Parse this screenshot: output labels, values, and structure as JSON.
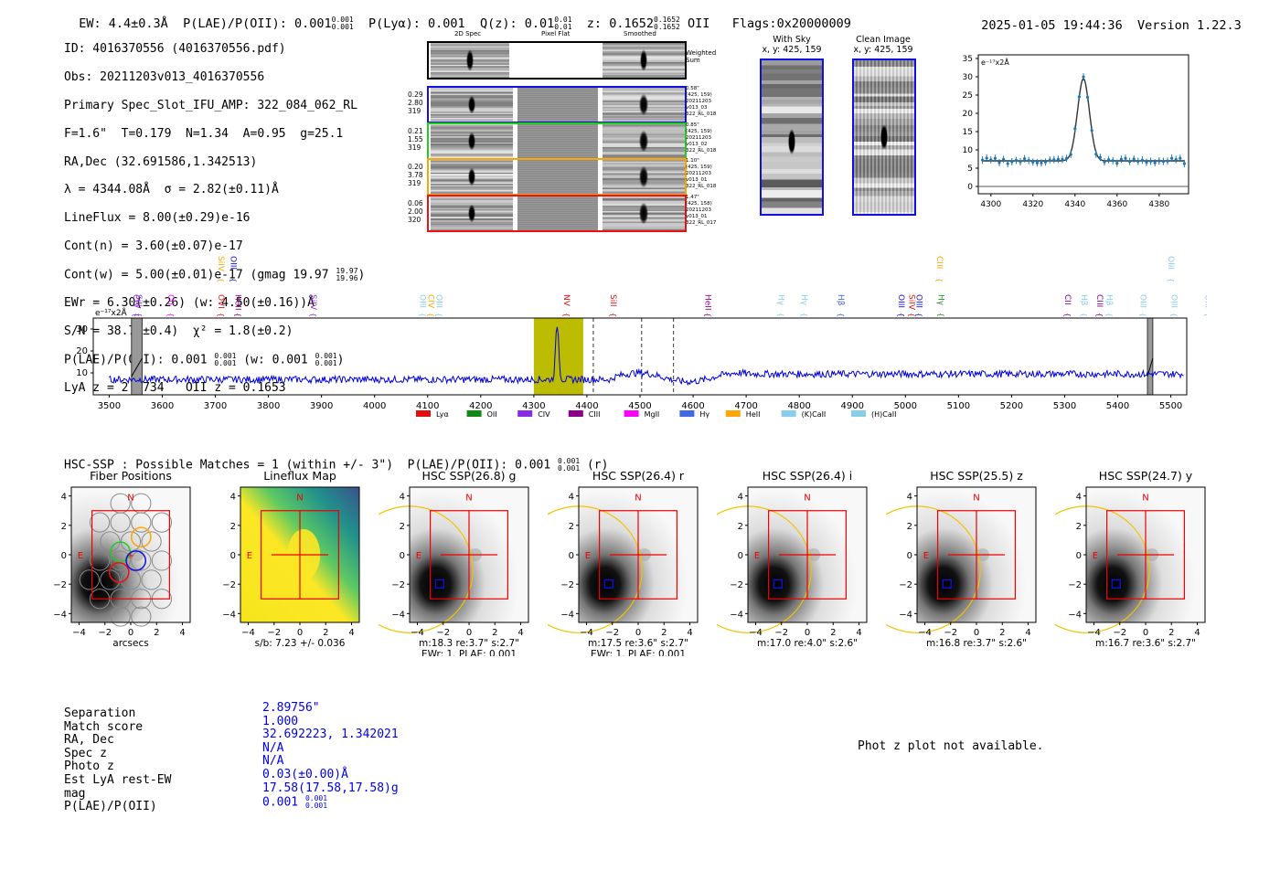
{
  "header": {
    "ew": "EW: 4.4±0.3Å",
    "plae_label": "P(LAE)/P(OII):",
    "plae_value": "0.001",
    "plae_hi": "0.001",
    "plae_lo": "0.001",
    "plya": "P(Lyα): 0.001",
    "qz_label": "Q(z):",
    "qz_value": "0.01",
    "qz_hi": "0.01",
    "qz_lo": "0.01",
    "z_label": "z:",
    "z_value": "0.1652",
    "z_hi": "0.1652",
    "z_lo": "0.1652",
    "z_line": "OII",
    "flags": "Flags:0x20000009",
    "datetime": "2025-01-05 19:44:36",
    "version": "Version 1.22.3"
  },
  "info": {
    "id": "ID: 4016370556 (4016370556.pdf)",
    "obs": "Obs: 20211203v013_4016370556",
    "primary": "Primary Spec_Slot_IFU_AMP: 322_084_062_RL",
    "fparams": "F=1.6\"  T=0.179  N=1.34  A=0.95  g=25.1",
    "radec": "RA,Dec (32.691586,1.342513)",
    "lambda": "λ = 4344.08Å  σ = 2.82(±0.11)Å",
    "lineflux": "LineFlux = 8.00(±0.29)e-16",
    "contn": "Cont(n) = 3.60(±0.07)e-17",
    "contw": "Cont(w) = 5.00(±0.01)e-17 (gmag 19.97",
    "contw_hi": "19.97",
    "contw_lo": "19.96",
    "ewr": "EWr = 6.30(±0.26) (w: 4.50(±0.16))Å",
    "sn": "S/N = 38.7(±0.4)  χ² = 1.8(±0.2)",
    "plae": "P(LAE)/P(OII): 0.001",
    "plae_hi": "0.001",
    "plae_lo": "0.001",
    "plae_w": "(w: 0.001",
    "plae_w_hi": "0.001",
    "plae_w_lo": "0.001",
    "lyaz": "LyA z = 2.5734   OII z = 0.1653"
  },
  "cutouts": {
    "col_titles": [
      "2D Spec",
      "Pixel Flat",
      "Smoothed"
    ],
    "weighted_sum": "Weighted\nSum",
    "rows": [
      {
        "left": [
          "0.29",
          "2.80",
          "319"
        ],
        "right": [
          "0.58\"",
          "(425, 159)",
          "20211203",
          "v013_03",
          "322_RL_018"
        ],
        "color": "#1010e0"
      },
      {
        "left": [
          "0.21",
          "1.55",
          "319"
        ],
        "right": [
          "0.85\"",
          "(425, 159)",
          "20211203",
          "v013_02",
          "322_RL_018"
        ],
        "color": "#22cc22"
      },
      {
        "left": [
          "0.20",
          "3.78",
          "319"
        ],
        "right": [
          "1.10\"",
          "(425, 159)",
          "20211203",
          "v013_01",
          "322_RL_018"
        ],
        "color": "#ffa500"
      },
      {
        "left": [
          "0.06",
          "2.00",
          "320"
        ],
        "right": [
          "1.47\"",
          "(425, 158)",
          "20211203",
          "v013_01",
          "322_RL_017"
        ],
        "color": "#ee1111"
      }
    ],
    "with_sky_title": "With Sky",
    "with_sky_xy": "x, y: 425, 159",
    "clean_title": "Clean Image",
    "clean_xy": "x, y: 425, 159"
  },
  "zoom_chart": {
    "unit": "e⁻¹⁷x2Å",
    "xticks": [
      "4300",
      "4320",
      "4340",
      "4360",
      "4380"
    ],
    "yticks": [
      "0",
      "5",
      "10",
      "15",
      "20",
      "25",
      "30",
      "35"
    ]
  },
  "spectrum": {
    "unit": "e⁻¹⁷x2Å",
    "xticks": [
      "3500",
      "3600",
      "3700",
      "3800",
      "3900",
      "4000",
      "4100",
      "4200",
      "4300",
      "4400",
      "4500",
      "4600",
      "4700",
      "4800",
      "4900",
      "5000",
      "5100",
      "5200",
      "5300",
      "5400",
      "5500"
    ],
    "yticks": [
      "10",
      "20",
      "30"
    ],
    "lines": [
      {
        "name": "CIV",
        "x": 3541,
        "color": "#8a2be2",
        "high": false
      },
      {
        "name": "SiII",
        "x": 3546,
        "color": "#8a2be2",
        "high": false
      },
      {
        "name": "CII",
        "x": 3606,
        "color": "#ff00ff",
        "high": false
      },
      {
        "name": "SiIV",
        "x": 3701,
        "color": "#ffa500",
        "high": true
      },
      {
        "name": "OIII",
        "x": 3724,
        "color": "#1010e0",
        "high": true
      },
      {
        "name": "OVI",
        "x": 3701,
        "color": "#e01010",
        "high": false
      },
      {
        "name": "HeII",
        "x": 3733,
        "color": "#8b008b",
        "high": false
      },
      {
        "name": "SiIV",
        "x": 3875,
        "color": "#8a2be2",
        "high": false
      },
      {
        "name": "OIII",
        "x": 4081,
        "color": "#87ceeb",
        "high": false
      },
      {
        "name": "CIV",
        "x": 4096,
        "color": "#ffa500",
        "high": false
      },
      {
        "name": "OIII",
        "x": 4112,
        "color": "#87ceeb",
        "high": false
      },
      {
        "name": "NV",
        "x": 4352,
        "color": "#e01010",
        "high": false
      },
      {
        "name": "SiII",
        "x": 4440,
        "color": "#e01010",
        "high": false
      },
      {
        "name": "HeII",
        "x": 4618,
        "color": "#8b008b",
        "high": false
      },
      {
        "name": "Hγ",
        "x": 4756,
        "color": "#87ceeb",
        "high": false
      },
      {
        "name": "Hγ",
        "x": 4800,
        "color": "#87ceeb",
        "high": false
      },
      {
        "name": "Hβ",
        "x": 4869,
        "color": "#4169e1",
        "high": false
      },
      {
        "name": "OIII",
        "x": 4982,
        "color": "#1010e0",
        "high": false
      },
      {
        "name": "SiIV",
        "x": 5002,
        "color": "#e01010",
        "high": false
      },
      {
        "name": "OIII",
        "x": 5016,
        "color": "#1010e0",
        "high": false
      },
      {
        "name": "CIII",
        "x": 5055,
        "color": "#ffa500",
        "high": true
      },
      {
        "name": "Hγ",
        "x": 5057,
        "color": "#228b22",
        "high": false
      },
      {
        "name": "CII",
        "x": 5296,
        "color": "#8b008b",
        "high": false
      },
      {
        "name": "Hβ",
        "x": 5327,
        "color": "#87ceeb",
        "high": false
      },
      {
        "name": "CIII",
        "x": 5356,
        "color": "#8b008b",
        "high": false
      },
      {
        "name": "Hβ",
        "x": 5374,
        "color": "#87ceeb",
        "high": false
      },
      {
        "name": "OIII",
        "x": 5438,
        "color": "#87ceeb",
        "high": false
      },
      {
        "name": "OIII",
        "x": 5490,
        "color": "#87ceeb",
        "high": true
      },
      {
        "name": "OIII",
        "x": 5496,
        "color": "#87ceeb",
        "high": false
      },
      {
        "name": "OIII",
        "x": 5560,
        "color": "#87ceeb",
        "high": false
      }
    ],
    "legend": [
      {
        "name": "Lyα",
        "color": "#e01010"
      },
      {
        "name": "OII",
        "color": "#118811"
      },
      {
        "name": "CIV",
        "color": "#8a2be2"
      },
      {
        "name": "CIII",
        "color": "#8b008b"
      },
      {
        "name": "MgII",
        "color": "#ff00ff"
      },
      {
        "name": "Hγ",
        "color": "#4169e1"
      },
      {
        "name": "HeII",
        "color": "#ffa500"
      },
      {
        "name": "(K)CaII",
        "color": "#87ceeb"
      },
      {
        "name": "(H)CaII",
        "color": "#87ceeb"
      }
    ]
  },
  "hsc": {
    "header": "HSC-SSP : Possible Matches = 1 (within +/- 3\")  P(LAE)/P(OII): 0.001",
    "header_hi": "0.001",
    "header_lo": "0.001",
    "header_band": "(r)",
    "panels": [
      {
        "title": "Fiber Positions",
        "cap1": "arcsecs",
        "cap2": ""
      },
      {
        "title": "Lineflux Map",
        "cap1": "s/b: 7.23 +/- 0.036",
        "cap2": ""
      },
      {
        "title": "HSC SSP(26.8) g",
        "cap1": "m:18.3  re:3.7\"  s:2.7\"",
        "cap2": "EWr: 1. PLAE: 0.001"
      },
      {
        "title": "HSC SSP(26.4) r",
        "cap1": "m:17.5  re:3.6\"  s:2.7\"",
        "cap2": "EWr: 1. PLAE: 0.001"
      },
      {
        "title": "HSC SSP(26.4) i",
        "cap1": "m:17.0  re:4.0\"  s:2.6\"",
        "cap2": ""
      },
      {
        "title": "HSC SSP(25.5) z",
        "cap1": "m:16.8  re:3.7\"  s:2.6\"",
        "cap2": ""
      },
      {
        "title": "HSC SSP(24.7) y",
        "cap1": "m:16.7  re:3.6\"  s:2.7\"",
        "cap2": ""
      }
    ],
    "ticks": [
      "−4",
      "−2",
      "0",
      "2",
      "4"
    ],
    "compass_n": "N",
    "compass_e": "E"
  },
  "table": {
    "labels": [
      "Separation",
      "Match score",
      "RA, Dec",
      "Spec z",
      "Photo z",
      "Est LyA rest-EW",
      "mag",
      "P(LAE)/P(OII)"
    ],
    "values": [
      "2.89756\"",
      "1.000",
      "32.692223, 1.342021",
      "N/A",
      "N/A",
      "0.03(±0.00)Å",
      "17.58(17.58,17.58)g",
      "0.001"
    ],
    "plae_hi": "0.001",
    "plae_lo": "0.001",
    "photz_note": "Phot z plot not available."
  }
}
